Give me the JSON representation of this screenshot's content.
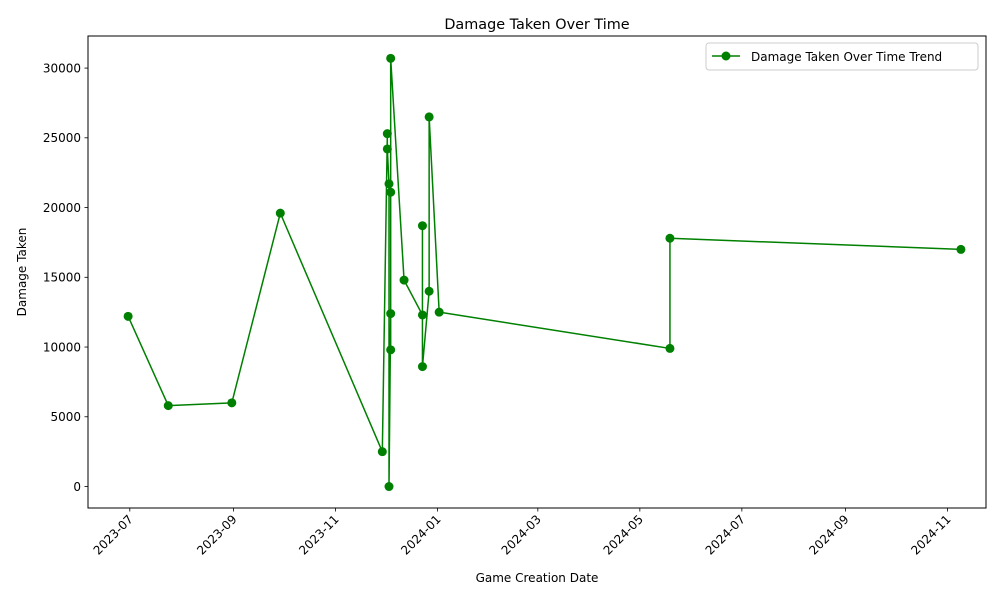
{
  "chart_data": {
    "type": "line",
    "title": "Damage Taken Over Time",
    "xlabel": "Game Creation Date",
    "ylabel": "Damage Taken",
    "x_tick_labels": [
      "2023-07",
      "2023-09",
      "2023-11",
      "2024-01",
      "2024-03",
      "2024-05",
      "2024-07",
      "2024-09",
      "2024-11"
    ],
    "x_ticks": [
      "2023-07-01",
      "2023-09-01",
      "2023-11-01",
      "2024-01-01",
      "2024-03-01",
      "2024-05-01",
      "2024-07-01",
      "2024-09-01",
      "2024-11-01"
    ],
    "y_ticks": [
      0,
      5000,
      10000,
      15000,
      20000,
      25000,
      30000
    ],
    "xlim": [
      "2023-06-06",
      "2024-11-24"
    ],
    "ylim": [
      -1540,
      32300
    ],
    "grid": false,
    "legend_position": "top-right",
    "line_color": "#008000",
    "series": [
      {
        "name": "Damage Taken Over Time Trend",
        "points": [
          {
            "x": "2023-06-30",
            "y": 12200
          },
          {
            "x": "2023-07-24",
            "y": 5800
          },
          {
            "x": "2023-08-31",
            "y": 6000
          },
          {
            "x": "2023-09-29",
            "y": 19600
          },
          {
            "x": "2023-11-29",
            "y": 2500
          },
          {
            "x": "2023-12-02",
            "y": 25300
          },
          {
            "x": "2023-12-02",
            "y": 24200
          },
          {
            "x": "2023-12-03",
            "y": 21700
          },
          {
            "x": "2023-12-03",
            "y": 0
          },
          {
            "x": "2023-12-04",
            "y": 12400
          },
          {
            "x": "2023-12-04",
            "y": 9800
          },
          {
            "x": "2023-12-04",
            "y": 21100
          },
          {
            "x": "2023-12-04",
            "y": 30700
          },
          {
            "x": "2023-12-12",
            "y": 14800
          },
          {
            "x": "2023-12-23",
            "y": 12300
          },
          {
            "x": "2023-12-23",
            "y": 18700
          },
          {
            "x": "2023-12-23",
            "y": 8600
          },
          {
            "x": "2023-12-27",
            "y": 14000
          },
          {
            "x": "2023-12-27",
            "y": 26500
          },
          {
            "x": "2024-01-02",
            "y": 12500
          },
          {
            "x": "2024-05-19",
            "y": 9900
          },
          {
            "x": "2024-05-19",
            "y": 17800
          },
          {
            "x": "2024-11-09",
            "y": 17000
          }
        ]
      }
    ]
  }
}
